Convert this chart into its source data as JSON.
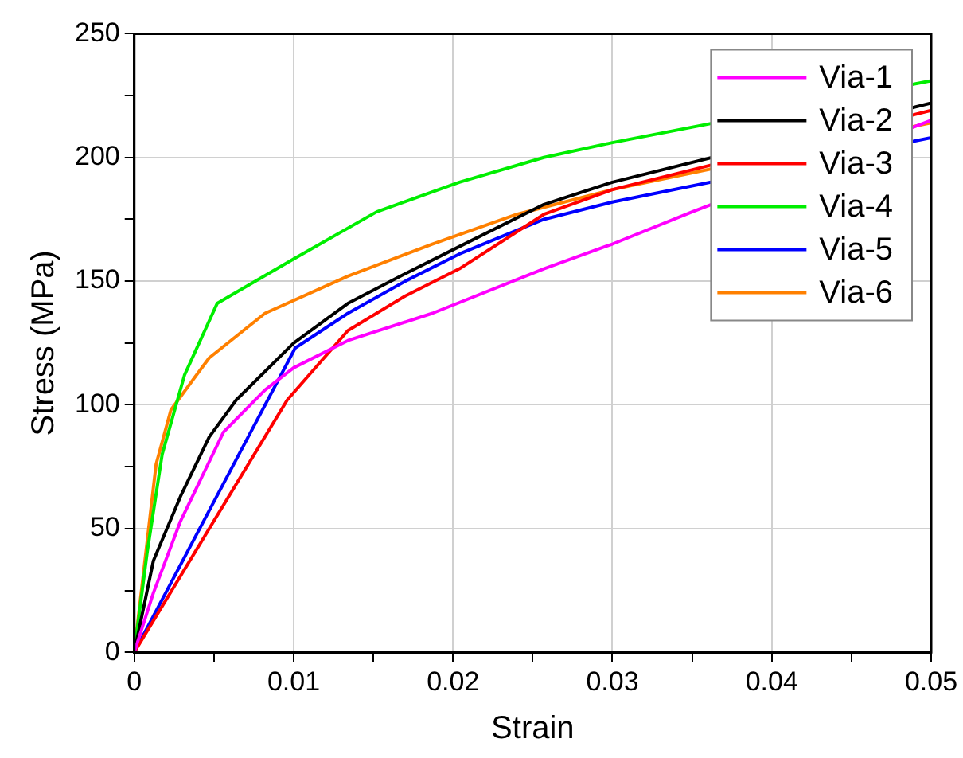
{
  "chart_data": {
    "type": "line",
    "xlabel": "Strain",
    "ylabel": "Stress (MPa)",
    "xlim": [
      0,
      0.05
    ],
    "ylim": [
      0,
      250
    ],
    "xticks": [
      0,
      {
        "value": 0.005,
        "label": null
      },
      0.01,
      {
        "value": 0.015,
        "label": null
      },
      0.02,
      {
        "value": 0.025,
        "label": null
      },
      0.03,
      {
        "value": 0.035,
        "label": null
      },
      0.04,
      {
        "value": 0.045,
        "label": null
      },
      0.05
    ],
    "yticks": [
      0,
      {
        "value": 25,
        "label": null
      },
      50,
      {
        "value": 75,
        "label": null
      },
      100,
      {
        "value": 125,
        "label": null
      },
      150,
      {
        "value": 175,
        "label": null
      },
      200,
      {
        "value": 225,
        "label": null
      },
      250
    ],
    "grid": true,
    "legend": "top right",
    "marker": "none",
    "line_style": "solid",
    "series": [
      {
        "name": "Via-1",
        "color": "#ff00ff",
        "x": [
          0,
          0.0012,
          0.0029,
          0.0056,
          0.0082,
          0.01,
          0.0134,
          0.0187,
          0.0257,
          0.03,
          0.035,
          0.04,
          0.05
        ],
        "values": [
          0,
          24,
          53,
          89,
          106,
          115,
          126,
          137,
          155,
          165,
          178,
          null,
          215
        ]
      },
      {
        "name": "Via-2",
        "color": "#000000",
        "x": [
          0,
          0.0012,
          0.0029,
          0.0047,
          0.0064,
          0.01,
          0.0134,
          0.017,
          0.0204,
          0.0257,
          0.03,
          0.04,
          0.05
        ],
        "values": [
          0,
          37,
          63,
          87,
          102,
          125,
          141,
          153,
          164,
          181,
          190,
          null,
          222
        ]
      },
      {
        "name": "Via-3",
        "color": "#ff0000",
        "x": [
          0,
          0.0096,
          0.0134,
          0.017,
          0.0204,
          0.0257,
          0.03,
          0.04,
          0.05
        ],
        "values": [
          0,
          102,
          130,
          144,
          155,
          177,
          187,
          null,
          219
        ]
      },
      {
        "name": "Via-4",
        "color": "#00ee00",
        "x": [
          0,
          0.0008,
          0.00175,
          0.00315,
          0.0052,
          0.01,
          0.0152,
          0.0204,
          0.0257,
          0.03,
          0.04,
          0.05
        ],
        "values": [
          0,
          40,
          80,
          112,
          141,
          159,
          178,
          190,
          200,
          206,
          null,
          231
        ]
      },
      {
        "name": "Via-5",
        "color": "#0000ff",
        "x": [
          0,
          0.0101,
          0.0134,
          0.017,
          0.0204,
          0.0257,
          0.03,
          0.04,
          0.05
        ],
        "values": [
          0,
          123,
          137,
          150,
          161,
          175,
          182,
          null,
          208
        ]
      },
      {
        "name": "Via-6",
        "color": "#ff8000",
        "x": [
          0,
          0.00137,
          0.0023,
          0.0047,
          0.0082,
          0.0134,
          0.0187,
          0.024,
          0.03,
          0.04,
          0.05
        ],
        "values": [
          0,
          76,
          98,
          119,
          137,
          152,
          165,
          177,
          187,
          null,
          214
        ]
      }
    ]
  }
}
